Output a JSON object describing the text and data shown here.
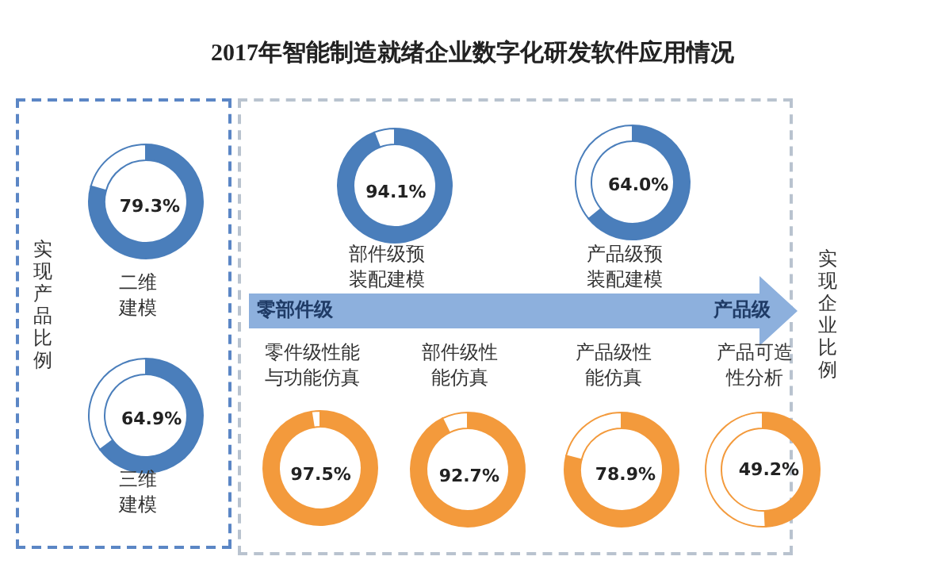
{
  "chart_data": [
    {
      "type": "other",
      "title": "2017年智能制造就绪企业数字化研发软件应用情况",
      "annotations": [
        "实现产品比例",
        "实现企业比例",
        "零部件级",
        "产品级"
      ]
    },
    {
      "type": "donut",
      "title": "二维建模",
      "categories": [
        null,
        null
      ],
      "values": [
        79.3,
        20.7
      ],
      "colors": [
        "#4a7ebb",
        "#ffffff"
      ],
      "value_labels": [
        "79.3%",
        null
      ]
    },
    {
      "type": "donut",
      "title": "三维建模",
      "categories": [
        null,
        null
      ],
      "values": [
        64.9,
        35.1
      ],
      "colors": [
        "#4a7ebb",
        "#ffffff"
      ],
      "value_labels": [
        "64.9%",
        null
      ]
    },
    {
      "type": "donut",
      "title": "部件级预装配建模",
      "categories": [
        null,
        null
      ],
      "values": [
        94.1,
        5.9
      ],
      "colors": [
        "#4a7ebb",
        "#ffffff"
      ],
      "value_labels": [
        "94.1%",
        null
      ]
    },
    {
      "type": "donut",
      "title": "产品级预装配建模",
      "categories": [
        null,
        null
      ],
      "values": [
        64.0,
        36.0
      ],
      "colors": [
        "#4a7ebb",
        "#ffffff"
      ],
      "value_labels": [
        "64.0%",
        null
      ]
    },
    {
      "type": "donut",
      "title": "零件级性能与功能仿真",
      "categories": [
        null,
        null
      ],
      "values": [
        97.5,
        2.5
      ],
      "colors": [
        "#f39a3c",
        "#ffffff"
      ],
      "value_labels": [
        "97.5%",
        null
      ]
    },
    {
      "type": "donut",
      "title": "部件级性能仿真",
      "categories": [
        null,
        null
      ],
      "values": [
        92.7,
        7.3
      ],
      "colors": [
        "#f39a3c",
        "#ffffff"
      ],
      "value_labels": [
        "92.7%",
        null
      ]
    },
    {
      "type": "donut",
      "title": "产品级性能仿真",
      "categories": [
        null,
        null
      ],
      "values": [
        78.9,
        21.1
      ],
      "colors": [
        "#f39a3c",
        "#ffffff"
      ],
      "value_labels": [
        "78.9%",
        null
      ]
    },
    {
      "type": "donut",
      "title": "产品可造性分析",
      "categories": [
        null,
        null
      ],
      "values": [
        49.2,
        50.8
      ],
      "colors": [
        "#f39a3c",
        "#ffffff"
      ],
      "value_labels": [
        "49.2%",
        null
      ]
    }
  ]
}
